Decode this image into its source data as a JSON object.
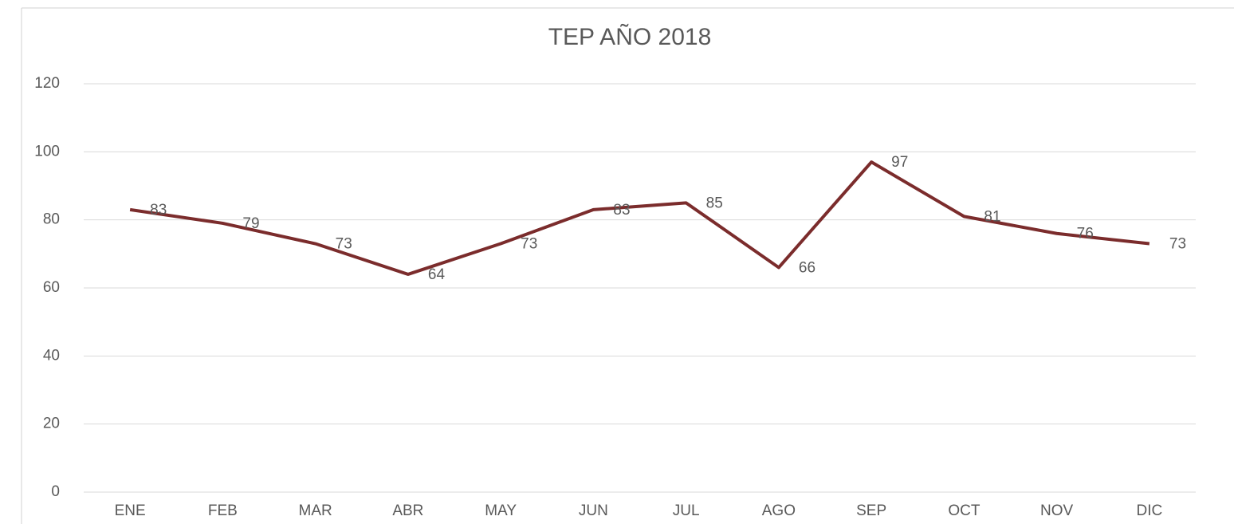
{
  "chart_data": {
    "type": "line",
    "title": "TEP AÑO 2018",
    "categories": [
      "ENE",
      "FEB",
      "MAR",
      "ABR",
      "MAY",
      "JUN",
      "JUL",
      "AGO",
      "SEP",
      "OCT",
      "NOV",
      "DIC"
    ],
    "series": [
      {
        "name": "TEP",
        "color": "#7b2c2c",
        "values": [
          83,
          79,
          73,
          64,
          73,
          83,
          85,
          66,
          97,
          81,
          76,
          73
        ]
      }
    ],
    "ylim": [
      0,
      120
    ],
    "yticks": [
      0,
      20,
      40,
      60,
      80,
      100,
      120
    ],
    "grid": true
  }
}
